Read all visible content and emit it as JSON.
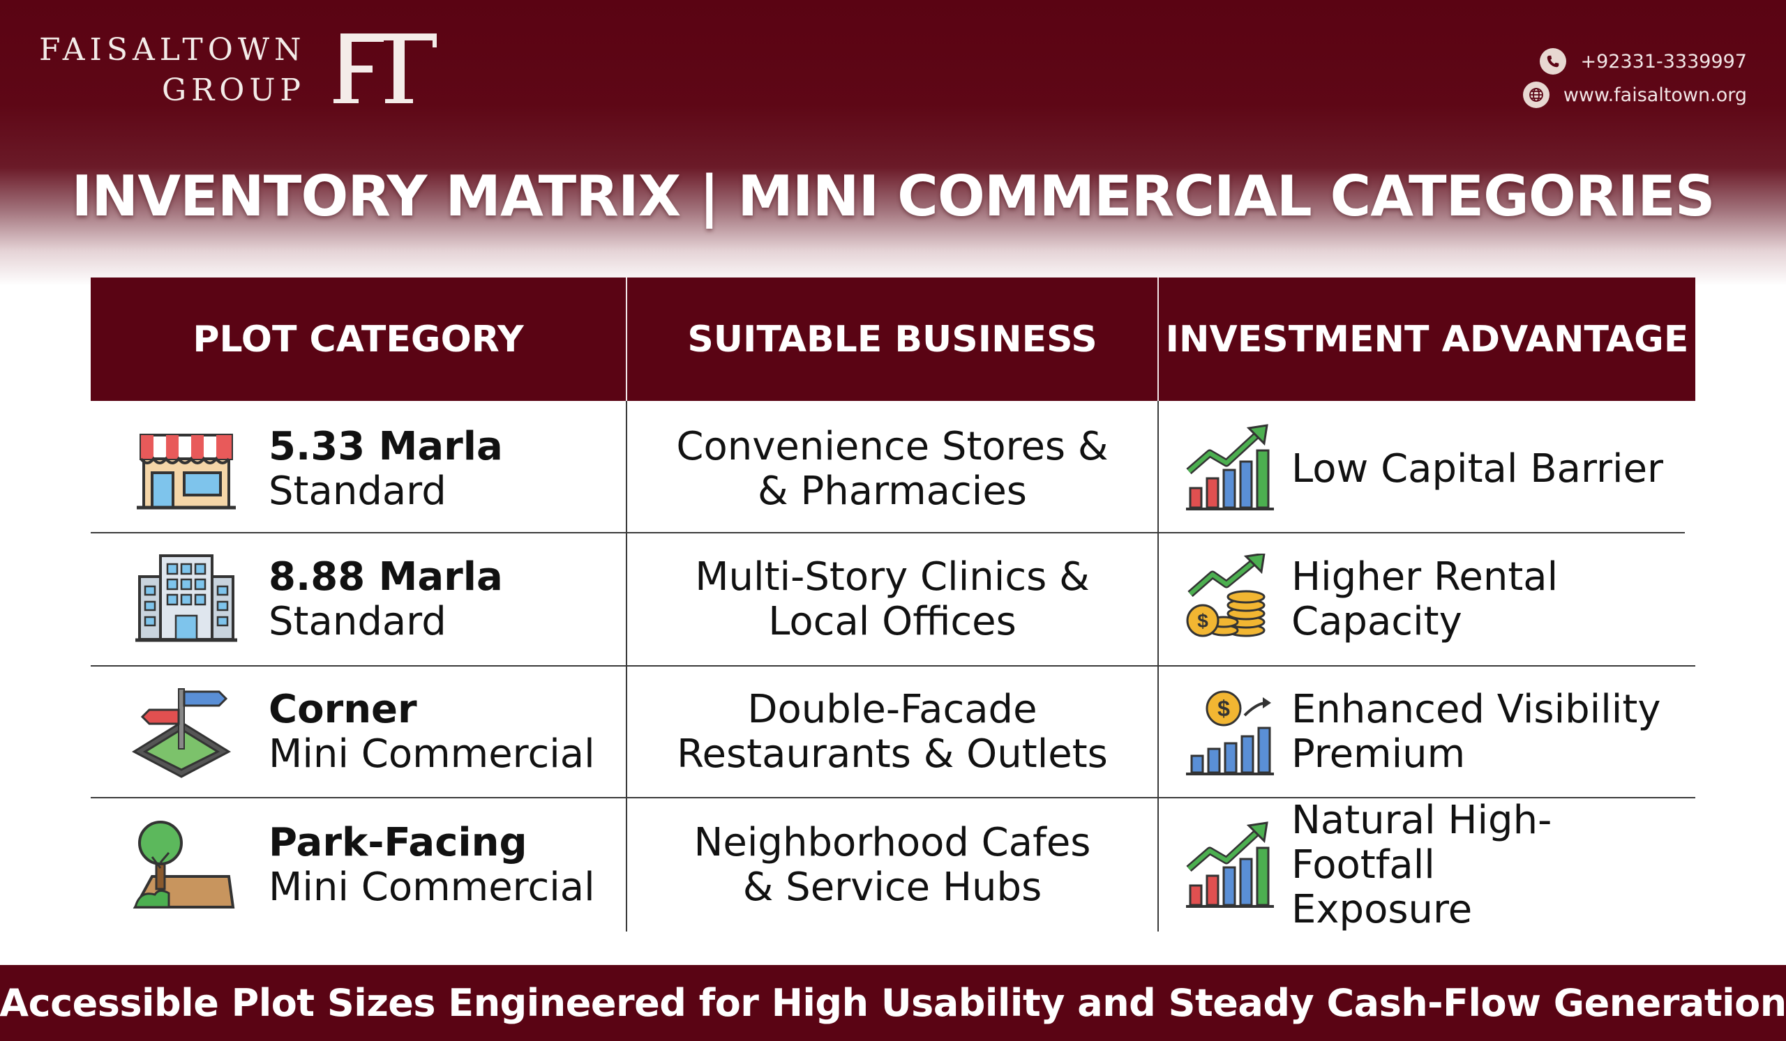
{
  "brand": {
    "line1": "FAISALTOWN",
    "line2": "GROUP",
    "monogram": "FT"
  },
  "contact": {
    "phone": "+92331-3339997",
    "website": "www.faisaltown.org",
    "phone_icon": "phone-icon",
    "web_icon": "globe-icon"
  },
  "title": "INVENTORY MATRIX | MINI COMMERCIAL CATEGORIES",
  "table": {
    "headers": [
      "PLOT CATEGORY",
      "SUITABLE BUSINESS",
      "INVESTMENT ADVANTAGE"
    ],
    "rows": [
      {
        "category_bold": "5.33 Marla",
        "category_sub": "Standard",
        "business_l1": "Convenience Stores &",
        "business_l2": "& Pharmacies",
        "advantage_l1": "Low Capital Barrier",
        "advantage_l2": "",
        "cat_icon": "storefront-icon",
        "adv_icon": "growth-chart-icon"
      },
      {
        "category_bold": "8.88 Marla",
        "category_sub": "Standard",
        "business_l1": "Multi-Story Clinics &",
        "business_l2": "Local Offices",
        "advantage_l1": "Higher Rental",
        "advantage_l2": "Capacity",
        "cat_icon": "office-building-icon",
        "adv_icon": "coins-growth-icon"
      },
      {
        "category_bold": "Corner",
        "category_sub": "Mini Commercial",
        "business_l1": "Double-Facade",
        "business_l2": "Restaurants & Outlets",
        "advantage_l1": "Enhanced Visibility",
        "advantage_l2": "Premium",
        "cat_icon": "corner-plot-signpost-icon",
        "adv_icon": "dollar-chart-icon"
      },
      {
        "category_bold": "Park-Facing",
        "category_sub": "Mini Commercial",
        "business_l1": "Neighborhood Cafes",
        "business_l2": "& Service Hubs",
        "advantage_l1": "Natural High-Footfall",
        "advantage_l2": "Exposure",
        "cat_icon": "tree-plot-icon",
        "adv_icon": "growth-chart-icon"
      }
    ]
  },
  "footer": "Accessible Plot Sizes Engineered for High Usability and Steady Cash-Flow Generation",
  "colors": {
    "maroon": "#5a0414",
    "white": "#ffffff",
    "text": "#111111"
  }
}
